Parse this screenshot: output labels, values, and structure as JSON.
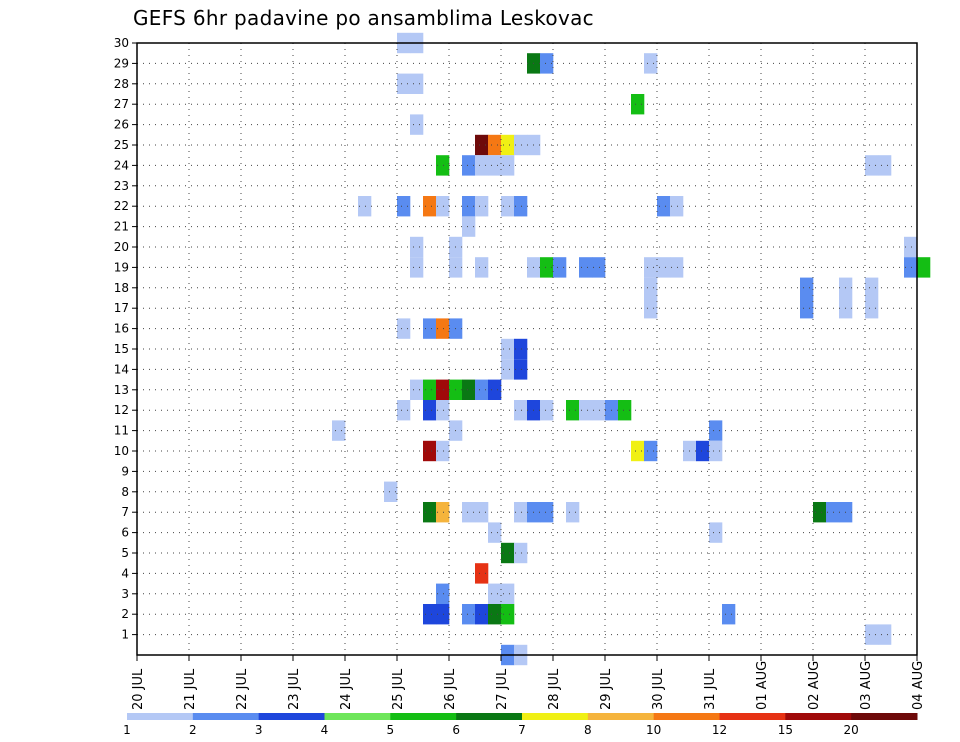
{
  "chart_data": {
    "type": "heatmap",
    "title": "GEFS 6hr padavine po ansamblima Leskovac",
    "x_tick_labels": [
      "20 JUL",
      "21 JUL",
      "22 JUL",
      "23 JUL",
      "24 JUL",
      "25 JUL",
      "26 JUL",
      "27 JUL",
      "28 JUL",
      "29 JUL",
      "30 JUL",
      "31 JUL",
      "01 AUG",
      "02 AUG",
      "03 AUG",
      "04 AUG"
    ],
    "x_range_days": [
      0,
      15
    ],
    "y_tick_labels": [
      "1",
      "2",
      "3",
      "4",
      "5",
      "6",
      "7",
      "8",
      "9",
      "10",
      "11",
      "12",
      "13",
      "14",
      "15",
      "16",
      "17",
      "18",
      "19",
      "20",
      "21",
      "22",
      "23",
      "24",
      "25",
      "26",
      "27",
      "28",
      "29",
      "30"
    ],
    "y_range": [
      0,
      30
    ],
    "grid": true,
    "colorbar": {
      "labels": [
        "1",
        "2",
        "3",
        "4",
        "5",
        "6",
        "7",
        "8",
        "10",
        "12",
        "15",
        "20"
      ],
      "colors": [
        "#b4c8f5",
        "#5a8cf0",
        "#1e46dc",
        "#6ee65a",
        "#14be14",
        "#0a7814",
        "#f0f014",
        "#f5b43c",
        "#f57814",
        "#e63214",
        "#a00a0a",
        "#6e0a0a"
      ]
    },
    "cell_width_hours": 6,
    "cells": [
      {
        "member": 30,
        "day": 5.0,
        "v": 1
      },
      {
        "member": 30,
        "day": 5.25,
        "v": 1
      },
      {
        "member": 29,
        "day": 7.5,
        "v": 6
      },
      {
        "member": 29,
        "day": 7.75,
        "v": 2
      },
      {
        "member": 29,
        "day": 9.75,
        "v": 1
      },
      {
        "member": 28,
        "day": 5.0,
        "v": 1
      },
      {
        "member": 28,
        "day": 5.25,
        "v": 1
      },
      {
        "member": 27,
        "day": 9.5,
        "v": 5
      },
      {
        "member": 26,
        "day": 5.25,
        "v": 1
      },
      {
        "member": 25,
        "day": 6.5,
        "v": 20
      },
      {
        "member": 25,
        "day": 6.75,
        "v": 10
      },
      {
        "member": 25,
        "day": 7.0,
        "v": 7
      },
      {
        "member": 25,
        "day": 7.25,
        "v": 1
      },
      {
        "member": 25,
        "day": 7.5,
        "v": 1
      },
      {
        "member": 24,
        "day": 5.75,
        "v": 5
      },
      {
        "member": 24,
        "day": 6.25,
        "v": 2
      },
      {
        "member": 24,
        "day": 6.5,
        "v": 1
      },
      {
        "member": 24,
        "day": 6.75,
        "v": 1
      },
      {
        "member": 24,
        "day": 7.0,
        "v": 1
      },
      {
        "member": 24,
        "day": 14.0,
        "v": 1
      },
      {
        "member": 24,
        "day": 14.25,
        "v": 1
      },
      {
        "member": 22,
        "day": 4.25,
        "v": 1
      },
      {
        "member": 22,
        "day": 5.0,
        "v": 2
      },
      {
        "member": 22,
        "day": 5.5,
        "v": 10
      },
      {
        "member": 22,
        "day": 5.75,
        "v": 1
      },
      {
        "member": 22,
        "day": 6.25,
        "v": 2
      },
      {
        "member": 22,
        "day": 6.5,
        "v": 1
      },
      {
        "member": 22,
        "day": 7.0,
        "v": 1
      },
      {
        "member": 22,
        "day": 7.25,
        "v": 2
      },
      {
        "member": 22,
        "day": 10.0,
        "v": 2
      },
      {
        "member": 22,
        "day": 10.25,
        "v": 1
      },
      {
        "member": 21,
        "day": 6.25,
        "v": 1
      },
      {
        "member": 20,
        "day": 5.25,
        "v": 1
      },
      {
        "member": 20,
        "day": 6.0,
        "v": 1
      },
      {
        "member": 20,
        "day": 14.75,
        "v": 1
      },
      {
        "member": 19,
        "day": 5.25,
        "v": 1
      },
      {
        "member": 19,
        "day": 6.0,
        "v": 1
      },
      {
        "member": 19,
        "day": 6.5,
        "v": 1
      },
      {
        "member": 19,
        "day": 7.5,
        "v": 1
      },
      {
        "member": 19,
        "day": 7.75,
        "v": 5
      },
      {
        "member": 19,
        "day": 8.0,
        "v": 2
      },
      {
        "member": 19,
        "day": 8.5,
        "v": 2
      },
      {
        "member": 19,
        "day": 8.75,
        "v": 2
      },
      {
        "member": 19,
        "day": 9.75,
        "v": 1
      },
      {
        "member": 19,
        "day": 10.0,
        "v": 1
      },
      {
        "member": 19,
        "day": 10.25,
        "v": 1
      },
      {
        "member": 19,
        "day": 14.75,
        "v": 2
      },
      {
        "member": 19,
        "day": 15.0,
        "v": 5
      },
      {
        "member": 18,
        "day": 9.75,
        "v": 1
      },
      {
        "member": 18,
        "day": 12.75,
        "v": 2
      },
      {
        "member": 18,
        "day": 13.5,
        "v": 1
      },
      {
        "member": 18,
        "day": 14.0,
        "v": 1
      },
      {
        "member": 17,
        "day": 9.75,
        "v": 1
      },
      {
        "member": 17,
        "day": 12.75,
        "v": 2
      },
      {
        "member": 17,
        "day": 13.5,
        "v": 1
      },
      {
        "member": 17,
        "day": 14.0,
        "v": 1
      },
      {
        "member": 16,
        "day": 5.0,
        "v": 1
      },
      {
        "member": 16,
        "day": 5.5,
        "v": 2
      },
      {
        "member": 16,
        "day": 5.75,
        "v": 10
      },
      {
        "member": 16,
        "day": 6.0,
        "v": 2
      },
      {
        "member": 15,
        "day": 7.0,
        "v": 1
      },
      {
        "member": 15,
        "day": 7.25,
        "v": 3
      },
      {
        "member": 14,
        "day": 7.0,
        "v": 1
      },
      {
        "member": 14,
        "day": 7.25,
        "v": 3
      },
      {
        "member": 13,
        "day": 5.25,
        "v": 1
      },
      {
        "member": 13,
        "day": 5.5,
        "v": 5
      },
      {
        "member": 13,
        "day": 5.75,
        "v": 15
      },
      {
        "member": 13,
        "day": 6.0,
        "v": 5
      },
      {
        "member": 13,
        "day": 6.25,
        "v": 6
      },
      {
        "member": 13,
        "day": 6.5,
        "v": 2
      },
      {
        "member": 13,
        "day": 6.75,
        "v": 3
      },
      {
        "member": 12,
        "day": 5.0,
        "v": 1
      },
      {
        "member": 12,
        "day": 5.5,
        "v": 3
      },
      {
        "member": 12,
        "day": 5.75,
        "v": 1
      },
      {
        "member": 12,
        "day": 7.25,
        "v": 1
      },
      {
        "member": 12,
        "day": 7.5,
        "v": 3
      },
      {
        "member": 12,
        "day": 7.75,
        "v": 1
      },
      {
        "member": 12,
        "day": 8.25,
        "v": 5
      },
      {
        "member": 12,
        "day": 8.5,
        "v": 1
      },
      {
        "member": 12,
        "day": 8.75,
        "v": 1
      },
      {
        "member": 12,
        "day": 9.0,
        "v": 2
      },
      {
        "member": 12,
        "day": 9.25,
        "v": 5
      },
      {
        "member": 11,
        "day": 3.75,
        "v": 1
      },
      {
        "member": 11,
        "day": 6.0,
        "v": 1
      },
      {
        "member": 11,
        "day": 11.0,
        "v": 2
      },
      {
        "member": 10,
        "day": 5.5,
        "v": 15
      },
      {
        "member": 10,
        "day": 5.75,
        "v": 1
      },
      {
        "member": 10,
        "day": 9.5,
        "v": 7
      },
      {
        "member": 10,
        "day": 9.75,
        "v": 2
      },
      {
        "member": 10,
        "day": 10.5,
        "v": 1
      },
      {
        "member": 10,
        "day": 10.75,
        "v": 3
      },
      {
        "member": 10,
        "day": 11.0,
        "v": 1
      },
      {
        "member": 8,
        "day": 4.75,
        "v": 1
      },
      {
        "member": 7,
        "day": 5.5,
        "v": 6
      },
      {
        "member": 7,
        "day": 5.75,
        "v": 8
      },
      {
        "member": 7,
        "day": 6.25,
        "v": 1
      },
      {
        "member": 7,
        "day": 6.5,
        "v": 1
      },
      {
        "member": 7,
        "day": 7.25,
        "v": 1
      },
      {
        "member": 7,
        "day": 7.5,
        "v": 2
      },
      {
        "member": 7,
        "day": 7.75,
        "v": 2
      },
      {
        "member": 7,
        "day": 8.25,
        "v": 1
      },
      {
        "member": 7,
        "day": 13.0,
        "v": 6
      },
      {
        "member": 7,
        "day": 13.25,
        "v": 2
      },
      {
        "member": 7,
        "day": 13.5,
        "v": 2
      },
      {
        "member": 6,
        "day": 6.75,
        "v": 1
      },
      {
        "member": 6,
        "day": 11.0,
        "v": 1
      },
      {
        "member": 5,
        "day": 7.0,
        "v": 6
      },
      {
        "member": 5,
        "day": 7.25,
        "v": 1
      },
      {
        "member": 4,
        "day": 6.5,
        "v": 12
      },
      {
        "member": 3,
        "day": 5.75,
        "v": 2
      },
      {
        "member": 3,
        "day": 6.75,
        "v": 1
      },
      {
        "member": 3,
        "day": 7.0,
        "v": 1
      },
      {
        "member": 2,
        "day": 5.5,
        "v": 3
      },
      {
        "member": 2,
        "day": 5.75,
        "v": 3
      },
      {
        "member": 2,
        "day": 6.25,
        "v": 2
      },
      {
        "member": 2,
        "day": 6.5,
        "v": 3
      },
      {
        "member": 2,
        "day": 6.75,
        "v": 6
      },
      {
        "member": 2,
        "day": 7.0,
        "v": 5
      },
      {
        "member": 2,
        "day": 11.25,
        "v": 2
      },
      {
        "member": 1,
        "day": 14.0,
        "v": 1
      },
      {
        "member": 1,
        "day": 14.25,
        "v": 1
      },
      {
        "member": 0,
        "day": 7.0,
        "v": 2
      },
      {
        "member": 0,
        "day": 7.25,
        "v": 1
      }
    ]
  }
}
